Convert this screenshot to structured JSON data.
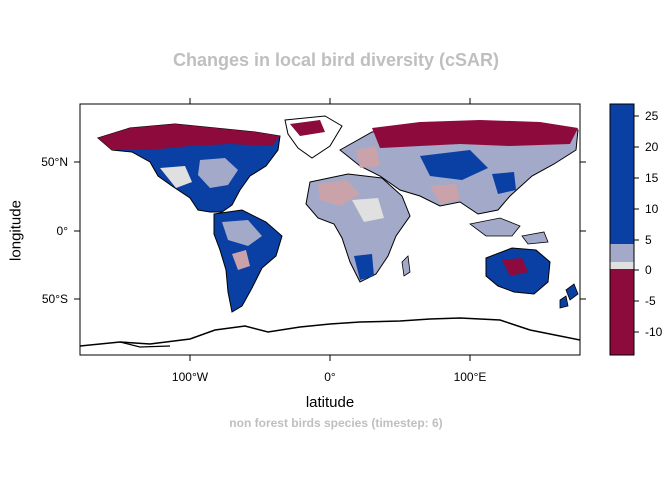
{
  "title": "Changes in local bird diversity (cSAR)",
  "xlabel": "latitude",
  "ylabel": "longitude",
  "subtitle": "non forest birds species (timestep: 6)",
  "x_ticks": [
    "100°W",
    "0°",
    "100°E"
  ],
  "y_ticks": [
    "50°N",
    "0°",
    "50°S"
  ],
  "colorbar": {
    "ticks": [
      "25",
      "20",
      "15",
      "10",
      "5",
      "0",
      "-5",
      "-10"
    ],
    "colors": {
      "strong_positive": "#0a3fa3",
      "weak_positive": "#a3a9c9",
      "near_zero": "#e0e0e0",
      "negative": "#8c0a3c"
    }
  }
}
